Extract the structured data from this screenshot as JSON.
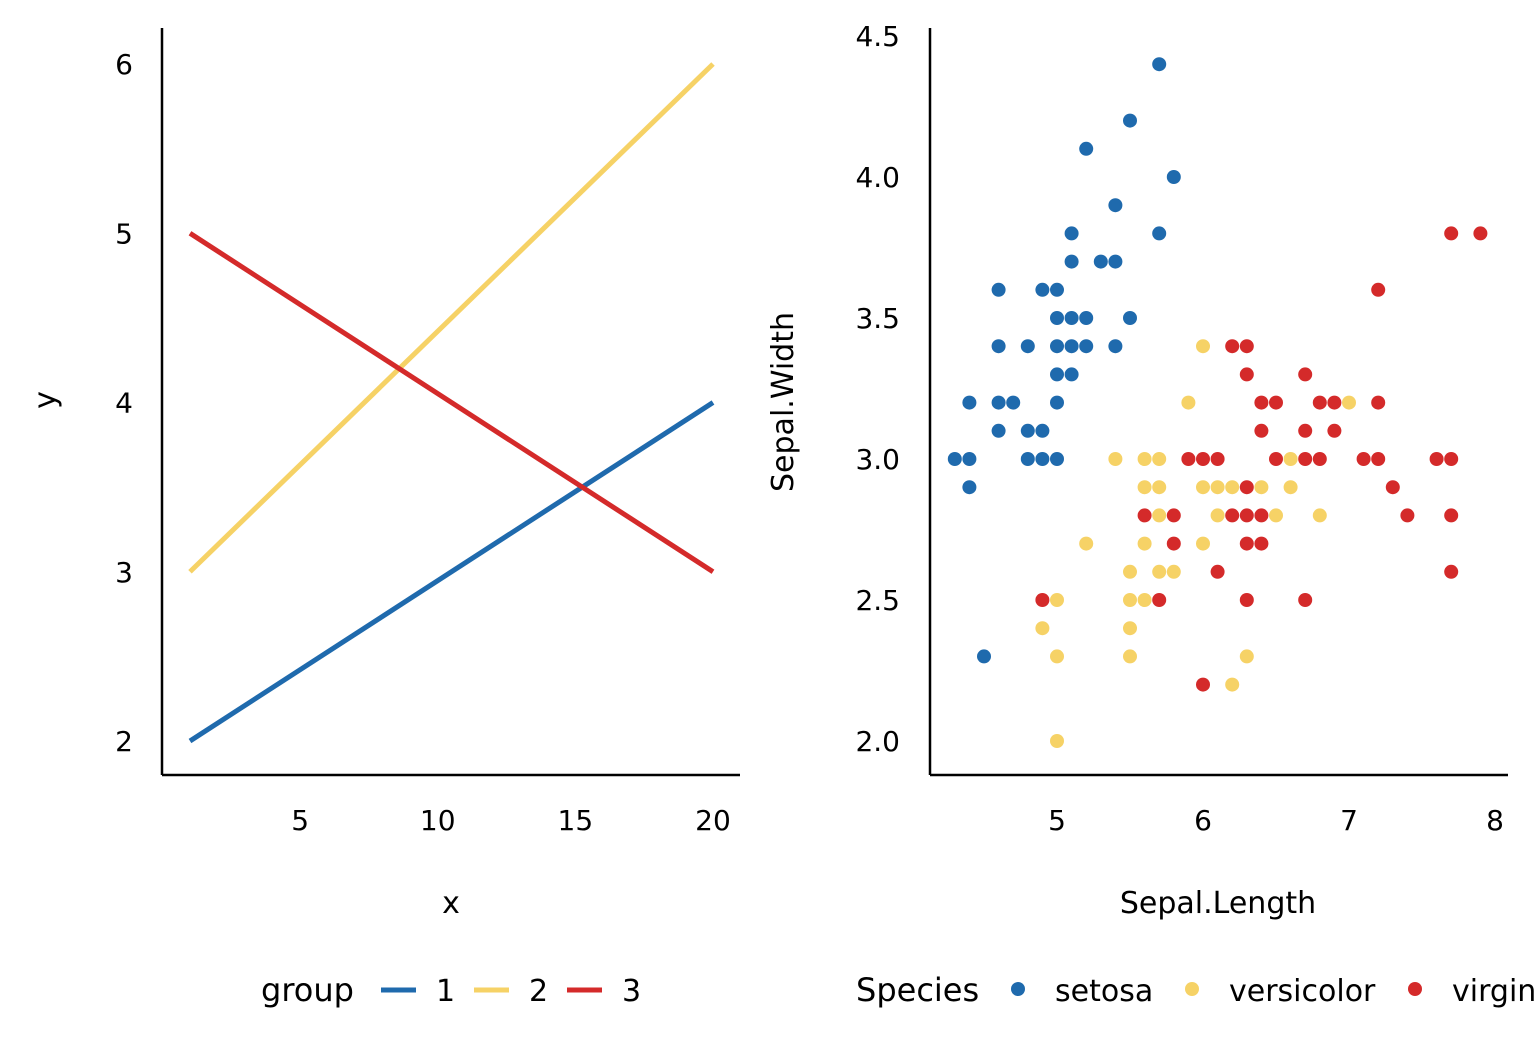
{
  "colors": {
    "axis": "#000000",
    "blue": "#1f6aad",
    "yellow": "#f6d266",
    "red": "#d42a2a"
  },
  "chart_data": [
    {
      "type": "line",
      "title": "",
      "xlabel": "x",
      "ylabel": "y",
      "xlim": [
        0,
        21
      ],
      "ylim": [
        1.8,
        6.2
      ],
      "xticks": [
        5,
        10,
        15,
        20
      ],
      "yticks": [
        2,
        3,
        4,
        5,
        6
      ],
      "grid": false,
      "legend": {
        "title": "group",
        "position": "bottom",
        "entries": [
          "1",
          "2",
          "3"
        ]
      },
      "series": [
        {
          "name": "1",
          "color": "#1f6aad",
          "x": [
            1,
            20
          ],
          "y": [
            2,
            4
          ]
        },
        {
          "name": "2",
          "color": "#f6d266",
          "x": [
            1,
            20
          ],
          "y": [
            3,
            6
          ]
        },
        {
          "name": "3",
          "color": "#d42a2a",
          "x": [
            1,
            20
          ],
          "y": [
            5,
            3
          ]
        }
      ]
    },
    {
      "type": "scatter",
      "title": "",
      "xlabel": "Sepal.Length",
      "ylabel": "Sepal.Width",
      "xlim": [
        4.2,
        8.0
      ],
      "ylim": [
        1.88,
        4.58
      ],
      "xticks": [
        5,
        6,
        7,
        8
      ],
      "yticks": [
        "2.0",
        "2.5",
        "3.0",
        "3.5",
        "4.0",
        "4.5"
      ],
      "grid": false,
      "legend": {
        "title": "Species",
        "position": "bottom",
        "entries": [
          "setosa",
          "versicolor",
          "virgin"
        ]
      },
      "series": [
        {
          "name": "setosa",
          "color": "#1f6aad",
          "points": [
            [
              5.7,
              4.4
            ],
            [
              5.5,
              4.2
            ],
            [
              5.2,
              4.1
            ],
            [
              5.8,
              4.0
            ],
            [
              5.4,
              3.9
            ],
            [
              5.1,
              3.8
            ],
            [
              5.7,
              3.8
            ],
            [
              5.1,
              3.7
            ],
            [
              5.3,
              3.7
            ],
            [
              5.4,
              3.7
            ],
            [
              4.6,
              3.6
            ],
            [
              4.9,
              3.6
            ],
            [
              5.0,
              3.6
            ],
            [
              5.0,
              3.5
            ],
            [
              5.1,
              3.5
            ],
            [
              5.2,
              3.5
            ],
            [
              5.5,
              3.5
            ],
            [
              4.6,
              3.4
            ],
            [
              4.8,
              3.4
            ],
            [
              5.0,
              3.4
            ],
            [
              5.1,
              3.4
            ],
            [
              5.2,
              3.4
            ],
            [
              5.4,
              3.4
            ],
            [
              5.0,
              3.3
            ],
            [
              5.1,
              3.3
            ],
            [
              4.4,
              3.2
            ],
            [
              4.6,
              3.2
            ],
            [
              4.7,
              3.2
            ],
            [
              5.0,
              3.2
            ],
            [
              4.6,
              3.1
            ],
            [
              4.8,
              3.1
            ],
            [
              4.9,
              3.1
            ],
            [
              4.3,
              3.0
            ],
            [
              4.4,
              3.0
            ],
            [
              4.8,
              3.0
            ],
            [
              4.9,
              3.0
            ],
            [
              5.0,
              3.0
            ],
            [
              4.4,
              2.9
            ],
            [
              4.5,
              2.3
            ]
          ]
        },
        {
          "name": "versicolor",
          "color": "#f6d266",
          "points": [
            [
              6.0,
              3.4
            ],
            [
              5.9,
              3.2
            ],
            [
              7.0,
              3.2
            ],
            [
              5.4,
              3.0
            ],
            [
              5.6,
              3.0
            ],
            [
              5.7,
              3.0
            ],
            [
              6.6,
              3.0
            ],
            [
              5.6,
              2.9
            ],
            [
              5.7,
              2.9
            ],
            [
              6.0,
              2.9
            ],
            [
              6.1,
              2.9
            ],
            [
              6.2,
              2.9
            ],
            [
              6.4,
              2.9
            ],
            [
              6.6,
              2.9
            ],
            [
              5.7,
              2.8
            ],
            [
              6.1,
              2.8
            ],
            [
              6.5,
              2.8
            ],
            [
              6.8,
              2.8
            ],
            [
              5.2,
              2.7
            ],
            [
              5.6,
              2.7
            ],
            [
              6.0,
              2.7
            ],
            [
              5.5,
              2.6
            ],
            [
              5.7,
              2.6
            ],
            [
              5.8,
              2.6
            ],
            [
              5.0,
              2.5
            ],
            [
              5.5,
              2.5
            ],
            [
              5.6,
              2.5
            ],
            [
              4.9,
              2.4
            ],
            [
              5.5,
              2.4
            ],
            [
              5.0,
              2.3
            ],
            [
              5.5,
              2.3
            ],
            [
              6.3,
              2.3
            ],
            [
              6.2,
              2.2
            ],
            [
              5.0,
              2.0
            ]
          ]
        },
        {
          "name": "virgin",
          "color": "#d42a2a",
          "points": [
            [
              7.7,
              3.8
            ],
            [
              7.9,
              3.8
            ],
            [
              7.2,
              3.6
            ],
            [
              6.2,
              3.4
            ],
            [
              6.3,
              3.4
            ],
            [
              6.3,
              3.3
            ],
            [
              6.7,
              3.3
            ],
            [
              6.4,
              3.2
            ],
            [
              6.5,
              3.2
            ],
            [
              6.8,
              3.2
            ],
            [
              6.9,
              3.2
            ],
            [
              7.2,
              3.2
            ],
            [
              6.4,
              3.1
            ],
            [
              6.7,
              3.1
            ],
            [
              6.9,
              3.1
            ],
            [
              5.9,
              3.0
            ],
            [
              6.0,
              3.0
            ],
            [
              6.1,
              3.0
            ],
            [
              6.5,
              3.0
            ],
            [
              6.7,
              3.0
            ],
            [
              6.8,
              3.0
            ],
            [
              7.1,
              3.0
            ],
            [
              7.2,
              3.0
            ],
            [
              7.6,
              3.0
            ],
            [
              7.7,
              3.0
            ],
            [
              6.3,
              2.9
            ],
            [
              7.3,
              2.9
            ],
            [
              5.6,
              2.8
            ],
            [
              5.8,
              2.8
            ],
            [
              6.2,
              2.8
            ],
            [
              6.3,
              2.8
            ],
            [
              6.4,
              2.8
            ],
            [
              7.4,
              2.8
            ],
            [
              7.7,
              2.8
            ],
            [
              5.8,
              2.7
            ],
            [
              6.3,
              2.7
            ],
            [
              6.4,
              2.7
            ],
            [
              6.1,
              2.6
            ],
            [
              7.7,
              2.6
            ],
            [
              4.9,
              2.5
            ],
            [
              5.7,
              2.5
            ],
            [
              6.3,
              2.5
            ],
            [
              6.7,
              2.5
            ],
            [
              6.0,
              2.2
            ]
          ]
        }
      ]
    }
  ]
}
